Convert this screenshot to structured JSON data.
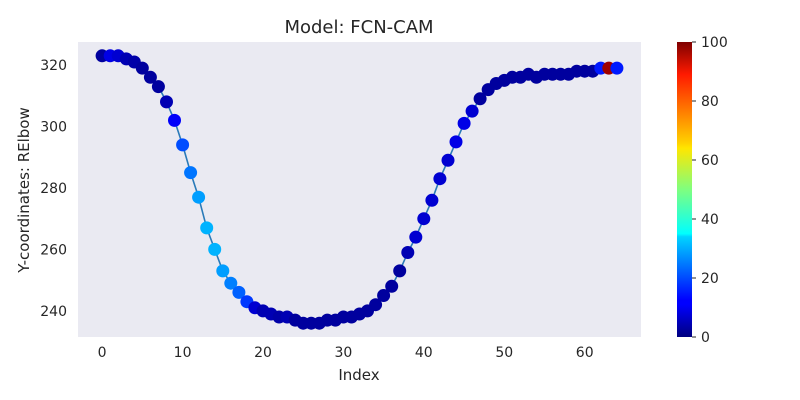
{
  "chart_data": {
    "type": "scatter",
    "title": "Model: FCN-CAM",
    "xlabel": "Index",
    "ylabel": "Y-coordinates: RElbow",
    "xlim": [
      -3,
      67
    ],
    "ylim": [
      231.5,
      327.5
    ],
    "x_ticks": [
      0,
      10,
      20,
      30,
      40,
      50,
      60
    ],
    "y_ticks": [
      240,
      260,
      280,
      300,
      320
    ],
    "grid": false,
    "line_color": "#2a7ab8",
    "plot_background": "#eaeaf2",
    "colormap": "jet",
    "colorbar": {
      "min": 0,
      "max": 100,
      "ticks": [
        0,
        20,
        40,
        60,
        80,
        100
      ]
    },
    "series": [
      {
        "x": [
          0,
          1,
          2,
          3,
          4,
          5,
          6,
          7,
          8,
          9,
          10,
          11,
          12,
          13,
          14,
          15,
          16,
          17,
          18,
          19,
          20,
          21,
          22,
          23,
          24,
          25,
          26,
          27,
          28,
          29,
          30,
          31,
          32,
          33,
          34,
          35,
          36,
          37,
          38,
          39,
          40,
          41,
          42,
          43,
          44,
          45,
          46,
          47,
          48,
          49,
          50,
          51,
          52,
          53,
          54,
          55,
          56,
          57,
          58,
          59,
          60,
          61,
          62,
          63,
          64
        ],
        "y": [
          323,
          323,
          323,
          322,
          321,
          319,
          316,
          313,
          308,
          302,
          294,
          285,
          277,
          267,
          260,
          253,
          249,
          246,
          243,
          241,
          240,
          239,
          238,
          238,
          237,
          236,
          236,
          236,
          237,
          237,
          238,
          238,
          239,
          240,
          242,
          245,
          248,
          253,
          259,
          264,
          270,
          276,
          283,
          289,
          295,
          301,
          305,
          309,
          312,
          314,
          315,
          316,
          316,
          317,
          316,
          317,
          317,
          317,
          317,
          318,
          318,
          318,
          319,
          319,
          319
        ],
        "color_values": [
          3,
          10,
          8,
          5,
          4,
          3,
          3,
          3,
          5,
          12,
          20,
          24,
          28,
          30,
          30,
          28,
          25,
          22,
          18,
          8,
          5,
          5,
          4,
          5,
          3,
          3,
          3,
          3,
          3,
          3,
          3,
          3,
          3,
          3,
          3,
          3,
          3,
          3,
          5,
          8,
          8,
          8,
          8,
          8,
          10,
          10,
          8,
          3,
          3,
          3,
          3,
          3,
          3,
          3,
          3,
          3,
          3,
          3,
          3,
          3,
          3,
          3,
          15,
          97,
          15
        ]
      }
    ]
  }
}
